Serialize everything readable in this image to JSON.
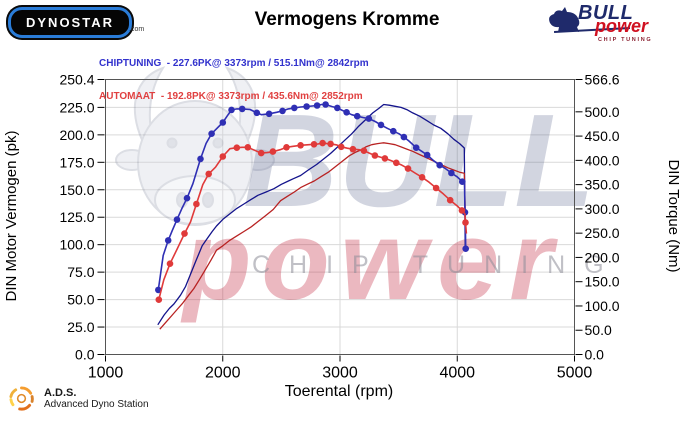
{
  "header": {
    "title": "Vermogens Kromme",
    "dynostar_logo": {
      "text": "DYNOSTAR",
      "suffix": ".com"
    },
    "bullpower_logo": {
      "word1": "BULL",
      "word2": "power",
      "word3": "CHIP TUNING"
    }
  },
  "legend": {
    "chiptuning": "CHIPTUNING  - 227.6PK@ 3373rpm / 515.1Nm@ 2842rpm",
    "automaat": "AUTOMAAT  - 192.8PK@ 3373rpm / 435.6Nm@ 2852rpm",
    "chiptuning_color": "#3232cd",
    "automaat_color": "#e04040"
  },
  "footer": {
    "ads_title": "A.D.S.",
    "ads_subtitle": "Advanced Dyno Station"
  },
  "watermark": {
    "big": "BULL",
    "mid": "power",
    "small": "CHIP TUNING"
  },
  "chart_data": {
    "type": "line",
    "title": "Vermogens Kromme",
    "xlabel": "Toerental (rpm)",
    "ylabel_left": "DIN Motor Vermogen (pk)",
    "ylabel_right": "DIN Torque (Nm)",
    "grid": true,
    "x_axis": {
      "min": 1000,
      "max": 5000,
      "ticks": [
        "1000",
        "2000",
        "3000",
        "4000",
        "5000"
      ]
    },
    "y_left": {
      "min": 0,
      "max": 250.4,
      "ticks": [
        "0.0",
        "25.0",
        "50.0",
        "75.0",
        "100.0",
        "125.0",
        "150.0",
        "175.0",
        "200.0",
        "225.0",
        "250.4"
      ]
    },
    "y_right": {
      "min": 0,
      "max": 566.6,
      "ticks": [
        "0.0",
        "50.0",
        "100.0",
        "150.0",
        "200.0",
        "250.0",
        "300.0",
        "350.0",
        "400.0",
        "450.0",
        "500.0",
        "566.6"
      ]
    },
    "series": [
      {
        "id": "chiptuning-power",
        "name": "CHIPTUNING vermogen (pk)",
        "axis": "left",
        "color": "#14148c",
        "width": 1.3,
        "markers": false,
        "points": [
          [
            1446,
            27
          ],
          [
            1500,
            36
          ],
          [
            1545,
            42
          ],
          [
            1583,
            46
          ],
          [
            1640,
            54
          ],
          [
            1683,
            62
          ],
          [
            1725,
            73
          ],
          [
            1770,
            85
          ],
          [
            1825,
            99
          ],
          [
            1870,
            106
          ],
          [
            1910,
            112
          ],
          [
            1947,
            117
          ],
          [
            2000,
            123
          ],
          [
            2060,
            128
          ],
          [
            2120,
            133
          ],
          [
            2180,
            137
          ],
          [
            2240,
            141
          ],
          [
            2300,
            145
          ],
          [
            2370,
            148
          ],
          [
            2436,
            151
          ],
          [
            2500,
            155
          ],
          [
            2560,
            158
          ],
          [
            2600,
            160
          ],
          [
            2664,
            163
          ],
          [
            2730,
            168
          ],
          [
            2800,
            173
          ],
          [
            2860,
            178
          ],
          [
            2919,
            183
          ],
          [
            2980,
            189
          ],
          [
            3040,
            195
          ],
          [
            3100,
            201
          ],
          [
            3160,
            208
          ],
          [
            3220,
            214
          ],
          [
            3280,
            220
          ],
          [
            3330,
            224
          ],
          [
            3373,
            227.6
          ],
          [
            3420,
            227
          ],
          [
            3470,
            226
          ],
          [
            3520,
            225
          ],
          [
            3570,
            223
          ],
          [
            3620,
            220
          ],
          [
            3680,
            217
          ],
          [
            3740,
            213
          ],
          [
            3800,
            209
          ],
          [
            3860,
            206
          ],
          [
            3920,
            201
          ],
          [
            3970,
            196
          ],
          [
            4020,
            192
          ],
          [
            4060,
            188
          ],
          [
            4064,
            140
          ],
          [
            4068,
            95
          ]
        ]
      },
      {
        "id": "automaat-power",
        "name": "AUTOMAAT vermogen (pk)",
        "axis": "left",
        "color": "#b82222",
        "width": 1.3,
        "markers": false,
        "points": [
          [
            1463,
            23
          ],
          [
            1520,
            30
          ],
          [
            1570,
            36
          ],
          [
            1611,
            41
          ],
          [
            1660,
            47
          ],
          [
            1710,
            54
          ],
          [
            1753,
            60
          ],
          [
            1800,
            68
          ],
          [
            1850,
            77
          ],
          [
            1900,
            86
          ],
          [
            1947,
            95
          ],
          [
            2000,
            99
          ],
          [
            2060,
            104
          ],
          [
            2120,
            108
          ],
          [
            2180,
            112
          ],
          [
            2240,
            116
          ],
          [
            2300,
            121
          ],
          [
            2360,
            126
          ],
          [
            2430,
            132
          ],
          [
            2493,
            140
          ],
          [
            2550,
            144
          ],
          [
            2610,
            148
          ],
          [
            2664,
            152
          ],
          [
            2720,
            155
          ],
          [
            2780,
            158
          ],
          [
            2840,
            162
          ],
          [
            2900,
            166
          ],
          [
            2960,
            171
          ],
          [
            3020,
            176
          ],
          [
            3080,
            181
          ],
          [
            3130,
            184
          ],
          [
            3175,
            186
          ],
          [
            3220,
            189
          ],
          [
            3270,
            191
          ],
          [
            3320,
            192
          ],
          [
            3373,
            192.8
          ],
          [
            3420,
            192
          ],
          [
            3470,
            191
          ],
          [
            3520,
            189
          ],
          [
            3570,
            187
          ],
          [
            3620,
            185
          ],
          [
            3680,
            182
          ],
          [
            3740,
            179
          ],
          [
            3800,
            176
          ],
          [
            3860,
            173
          ],
          [
            3920,
            170
          ],
          [
            3970,
            168
          ],
          [
            4020,
            166
          ],
          [
            4060,
            165
          ],
          [
            4066,
            140
          ],
          [
            4070,
            121
          ]
        ]
      },
      {
        "id": "chiptuning-torque",
        "name": "CHIPTUNING koppel (Nm)",
        "axis": "right",
        "color": "#2f2fb4",
        "width": 1.6,
        "markers": true,
        "points": [
          [
            1450,
            133
          ],
          [
            1492,
            204
          ],
          [
            1535,
            235
          ],
          [
            1569,
            255
          ],
          [
            1610,
            278
          ],
          [
            1650,
            300
          ],
          [
            1695,
            322
          ],
          [
            1745,
            352
          ],
          [
            1810,
            403
          ],
          [
            1858,
            435
          ],
          [
            1905,
            455
          ],
          [
            1947,
            465
          ],
          [
            2000,
            478
          ],
          [
            2040,
            492
          ],
          [
            2075,
            504
          ],
          [
            2120,
            506
          ],
          [
            2166,
            506
          ],
          [
            2231,
            505
          ],
          [
            2290,
            498
          ],
          [
            2331,
            494
          ],
          [
            2395,
            496
          ],
          [
            2459,
            499
          ],
          [
            2510,
            502
          ],
          [
            2559,
            506
          ],
          [
            2610,
            508
          ],
          [
            2664,
            510
          ],
          [
            2715,
            511
          ],
          [
            2764,
            512
          ],
          [
            2805,
            513
          ],
          [
            2842,
            515.1
          ],
          [
            2877,
            515
          ],
          [
            2930,
            511
          ],
          [
            2977,
            508
          ],
          [
            3020,
            503
          ],
          [
            3056,
            499
          ],
          [
            3100,
            494
          ],
          [
            3147,
            491
          ],
          [
            3200,
            488
          ],
          [
            3246,
            486
          ],
          [
            3300,
            480
          ],
          [
            3350,
            473
          ],
          [
            3403,
            466
          ],
          [
            3455,
            460
          ],
          [
            3502,
            455
          ],
          [
            3545,
            448
          ],
          [
            3587,
            440
          ],
          [
            3650,
            426
          ],
          [
            3700,
            418
          ],
          [
            3744,
            411
          ],
          [
            3800,
            399
          ],
          [
            3850,
            390
          ],
          [
            3900,
            383
          ],
          [
            3950,
            374
          ],
          [
            4000,
            366
          ],
          [
            4043,
            356
          ],
          [
            4062,
            352
          ],
          [
            4066,
            293
          ],
          [
            4070,
            249
          ],
          [
            4072,
            218
          ]
        ]
      },
      {
        "id": "automaat-torque",
        "name": "AUTOMAAT koppel (Nm)",
        "axis": "right",
        "color": "#e03a3a",
        "width": 1.6,
        "markers": true,
        "points": [
          [
            1455,
            113
          ],
          [
            1497,
            154
          ],
          [
            1550,
            187
          ],
          [
            1612,
            218
          ],
          [
            1674,
            249
          ],
          [
            1725,
            273
          ],
          [
            1775,
            310
          ],
          [
            1830,
            350
          ],
          [
            1880,
            372
          ],
          [
            1938,
            386
          ],
          [
            2000,
            408
          ],
          [
            2061,
            424
          ],
          [
            2120,
            426
          ],
          [
            2165,
            427
          ],
          [
            2214,
            427
          ],
          [
            2270,
            421
          ],
          [
            2328,
            415
          ],
          [
            2380,
            416
          ],
          [
            2428,
            418
          ],
          [
            2490,
            422
          ],
          [
            2544,
            427
          ],
          [
            2600,
            429
          ],
          [
            2664,
            431
          ],
          [
            2720,
            432
          ],
          [
            2778,
            433
          ],
          [
            2815,
            434
          ],
          [
            2852,
            435.6
          ],
          [
            2877,
            435
          ],
          [
            2920,
            434
          ],
          [
            2968,
            432
          ],
          [
            3010,
            428
          ],
          [
            3062,
            425
          ],
          [
            3110,
            423
          ],
          [
            3160,
            422
          ],
          [
            3204,
            420
          ],
          [
            3250,
            415
          ],
          [
            3298,
            410
          ],
          [
            3340,
            407
          ],
          [
            3383,
            404
          ],
          [
            3430,
            400
          ],
          [
            3480,
            395
          ],
          [
            3520,
            391
          ],
          [
            3580,
            383
          ],
          [
            3640,
            374
          ],
          [
            3700,
            365
          ],
          [
            3760,
            355
          ],
          [
            3820,
            343
          ],
          [
            3880,
            331
          ],
          [
            3940,
            318
          ],
          [
            4000,
            306
          ],
          [
            4040,
            297
          ],
          [
            4065,
            290
          ],
          [
            4070,
            272
          ],
          [
            4078,
            249
          ]
        ]
      }
    ]
  }
}
